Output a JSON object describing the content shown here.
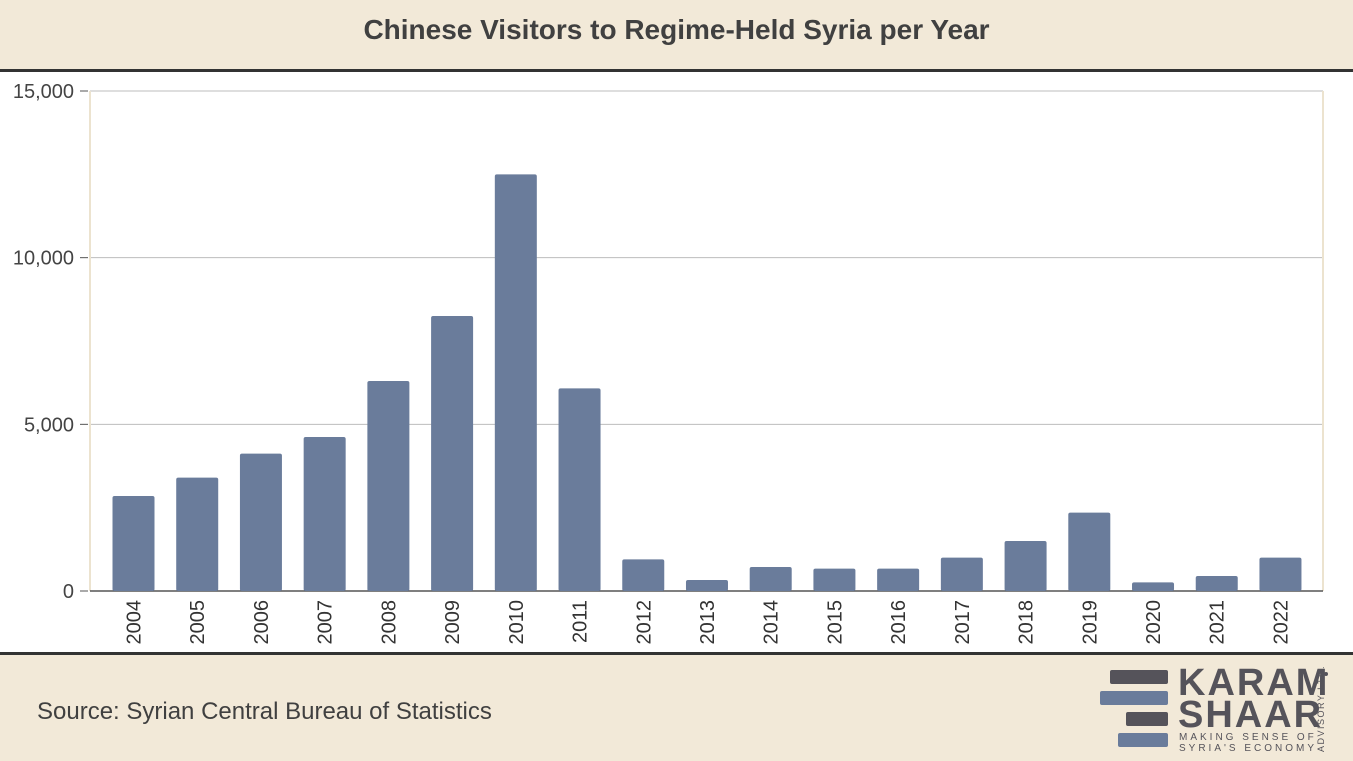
{
  "header": {
    "title": "Chinese Visitors to Regime-Held Syria per Year"
  },
  "footer": {
    "source": "Source: Syrian Central Bureau of Statistics"
  },
  "logo": {
    "line1": "KARAM",
    "line2": "SHAAR",
    "tagline1": "MAKING SENSE OF",
    "tagline2": "SYRIA'S ECONOMY",
    "side": "ADVISORY LTD."
  },
  "colors": {
    "bar": "#6a7c9b",
    "background": "#f2e9d8",
    "rule": "#333333",
    "logo_dark": "#55535a",
    "logo_blue": "#6a7c9b"
  },
  "chart_data": {
    "type": "bar",
    "title": "Chinese Visitors to Regime-Held Syria per Year",
    "xlabel": "",
    "ylabel": "",
    "categories": [
      "2004",
      "2005",
      "2006",
      "2007",
      "2008",
      "2009",
      "2010",
      "2011",
      "2012",
      "2013",
      "2014",
      "2015",
      "2016",
      "2017",
      "2018",
      "2019",
      "2020",
      "2021",
      "2022"
    ],
    "values": [
      2850,
      3400,
      4120,
      4620,
      6300,
      8250,
      12500,
      6080,
      950,
      330,
      720,
      670,
      670,
      1000,
      1500,
      2350,
      260,
      450,
      1000
    ],
    "ylim": [
      0,
      15000
    ],
    "yticks": [
      0,
      5000,
      10000,
      15000
    ],
    "ytick_labels": [
      "0",
      "5,000",
      "10,000",
      "15,000"
    ],
    "grid": true,
    "legend": "none"
  }
}
